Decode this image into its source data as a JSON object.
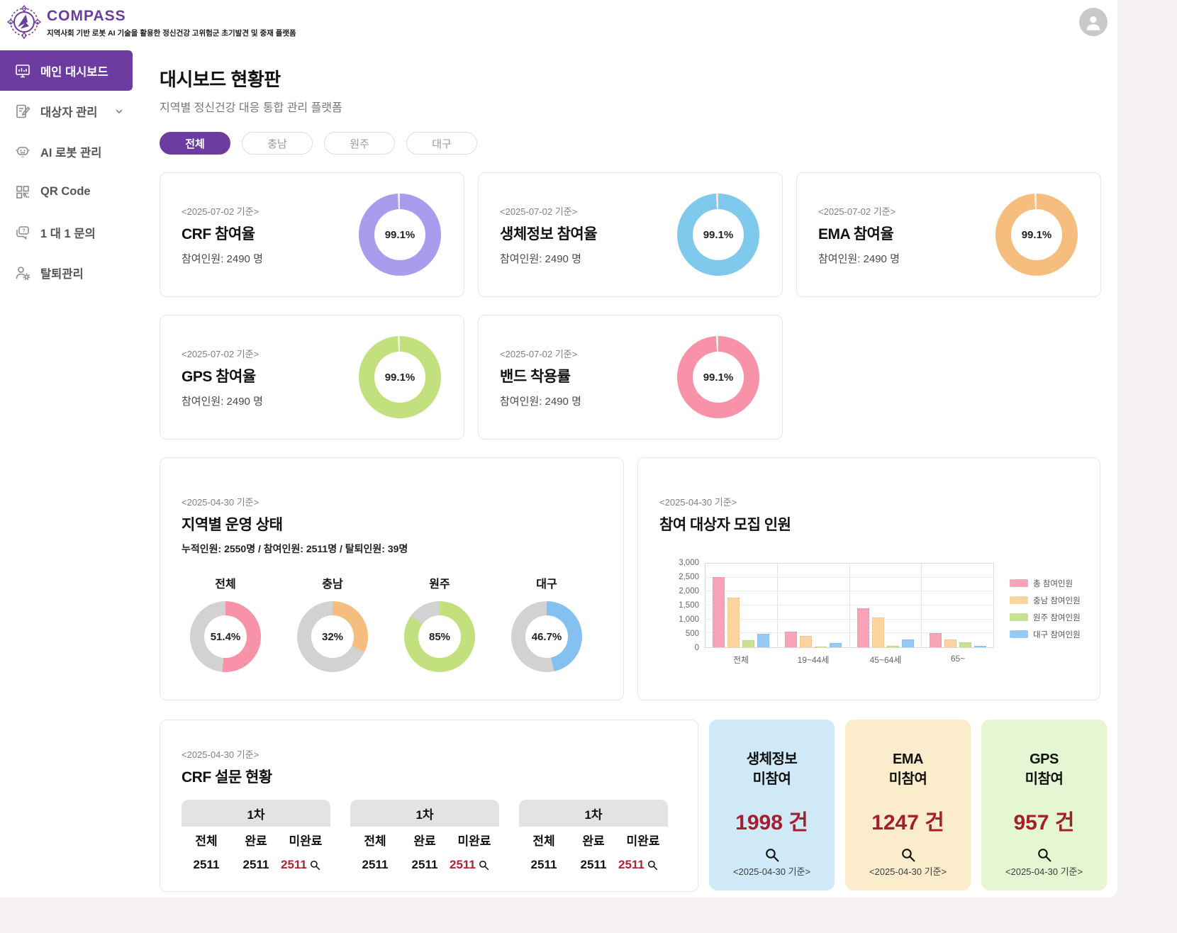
{
  "colors": {
    "accent_purple": "#6d3ca1",
    "danger_red": "#a51e2d",
    "donut_rest_light": "#ededed",
    "donut_rest_gray": "#d2d2d2"
  },
  "brand": {
    "name": "COMPASS",
    "tagline": "지역사회 기반 로봇 AI 기술을 활용한 정신건강 고위험군 초기발견 및 중재 플랫폼"
  },
  "sidebar": {
    "items": [
      {
        "label": "메인 대시보드"
      },
      {
        "label": "대상자 관리"
      },
      {
        "label": "AI 로봇 관리"
      },
      {
        "label": "QR Code"
      },
      {
        "label": "1 대 1 문의"
      },
      {
        "label": "탈퇴관리"
      }
    ]
  },
  "page": {
    "title": "대시보드 현황판",
    "subtitle": "지역별 정신건강 대응 통합 관리 플랫폼"
  },
  "filters": [
    {
      "label": "전체",
      "active": true
    },
    {
      "label": "충남",
      "active": false
    },
    {
      "label": "원주",
      "active": false
    },
    {
      "label": "대구",
      "active": false
    }
  ],
  "stat_cards": [
    {
      "date": "<2025-07-02 기준>",
      "title": "CRF 참여율",
      "sub": "참여인원: 2490 명",
      "value": 99.1,
      "pct_label": "99.1%",
      "color": "#a99ced",
      "rest": "#ededed"
    },
    {
      "date": "<2025-07-02 기준>",
      "title": "생체정보 참여율",
      "sub": "참여인원: 2490 명",
      "value": 99.1,
      "pct_label": "99.1%",
      "color": "#7ec9ec",
      "rest": "#ededed"
    },
    {
      "date": "<2025-07-02 기준>",
      "title": "EMA 참여율",
      "sub": "참여인원: 2490 명",
      "value": 99.1,
      "pct_label": "99.1%",
      "color": "#f5bd7e",
      "rest": "#ededed"
    },
    {
      "date": "<2025-07-02 기준>",
      "title": "GPS 참여율",
      "sub": "참여인원: 2490 명",
      "value": 99.1,
      "pct_label": "99.1%",
      "color": "#c3e07f",
      "rest": "#ededed"
    },
    {
      "date": "<2025-07-02 기준>",
      "title": "밴드 착용률",
      "sub": "참여인원: 2490 명",
      "value": 99.1,
      "pct_label": "99.1%",
      "color": "#f792a9",
      "rest": "#ededed"
    }
  ],
  "region_status": {
    "date": "<2025-04-30 기준>",
    "title": "지역별 운영 상태",
    "summary": "누적인원: 2550명 / 참여인원: 2511명 / 탈퇴인원: 39명",
    "donuts": [
      {
        "name": "전체",
        "value": 51.4,
        "pct_label": "51.4%",
        "color": "#f792a9",
        "rest": "#d2d2d2"
      },
      {
        "name": "충남",
        "value": 32,
        "pct_label": "32%",
        "color": "#f5bd7e",
        "rest": "#d2d2d2"
      },
      {
        "name": "원주",
        "value": 85,
        "pct_label": "85%",
        "color": "#c3e07f",
        "rest": "#d2d2d2"
      },
      {
        "name": "대구",
        "value": 46.7,
        "pct_label": "46.7%",
        "color": "#85c1f0",
        "rest": "#d2d2d2"
      }
    ]
  },
  "chart_data": {
    "type": "bar",
    "date": "<2025-04-30 기준>",
    "title": "참여 대상자 모집 인원",
    "categories": [
      "전체",
      "19~44세",
      "45~64세",
      "65~"
    ],
    "series": [
      {
        "name": "총 참여인원",
        "color": "#f9a3b9",
        "values": [
          2511,
          570,
          1400,
          510
        ]
      },
      {
        "name": "충남 참여인원",
        "color": "#fbd49e",
        "values": [
          1770,
          400,
          1060,
          290
        ]
      },
      {
        "name": "원주 참여인원",
        "color": "#c9e28f",
        "values": [
          250,
          10,
          50,
          170
        ]
      },
      {
        "name": "대구 참여인원",
        "color": "#94caf3",
        "values": [
          490,
          150,
          290,
          40
        ]
      }
    ],
    "xlabel": "",
    "ylabel": "",
    "ylim": [
      0,
      3000
    ],
    "yticks": [
      0,
      500,
      1000,
      1500,
      2000,
      2500,
      3000
    ],
    "ytick_labels": [
      "0",
      "500",
      "1,000",
      "1,500",
      "2,000",
      "2,500",
      "3,000"
    ],
    "grid": true,
    "legend_position": "right"
  },
  "crf": {
    "date": "<2025-04-30 기준>",
    "title": "CRF 설문 현황",
    "tables": [
      {
        "round": "1차",
        "columns": [
          "전체",
          "완료",
          "미완료"
        ],
        "values": [
          "2511",
          "2511",
          "2511"
        ]
      },
      {
        "round": "1차",
        "columns": [
          "전체",
          "완료",
          "미완료"
        ],
        "values": [
          "2511",
          "2511",
          "2511"
        ]
      },
      {
        "round": "1차",
        "columns": [
          "전체",
          "완료",
          "미완료"
        ],
        "values": [
          "2511",
          "2511",
          "2511"
        ]
      }
    ]
  },
  "alert_cards": [
    {
      "title_line1": "생체정보",
      "title_line2": "미참여",
      "count": "1998 건",
      "date": "<2025-04-30 기준>",
      "bg": "#cfe9f6"
    },
    {
      "title_line1": "EMA",
      "title_line2": "미참여",
      "count": "1247 건",
      "date": "<2025-04-30 기준>",
      "bg": "#fbeccb"
    },
    {
      "title_line1": "GPS",
      "title_line2": "미참여",
      "count": "957 건",
      "date": "<2025-04-30 기준>",
      "bg": "#e5f6d3"
    }
  ]
}
